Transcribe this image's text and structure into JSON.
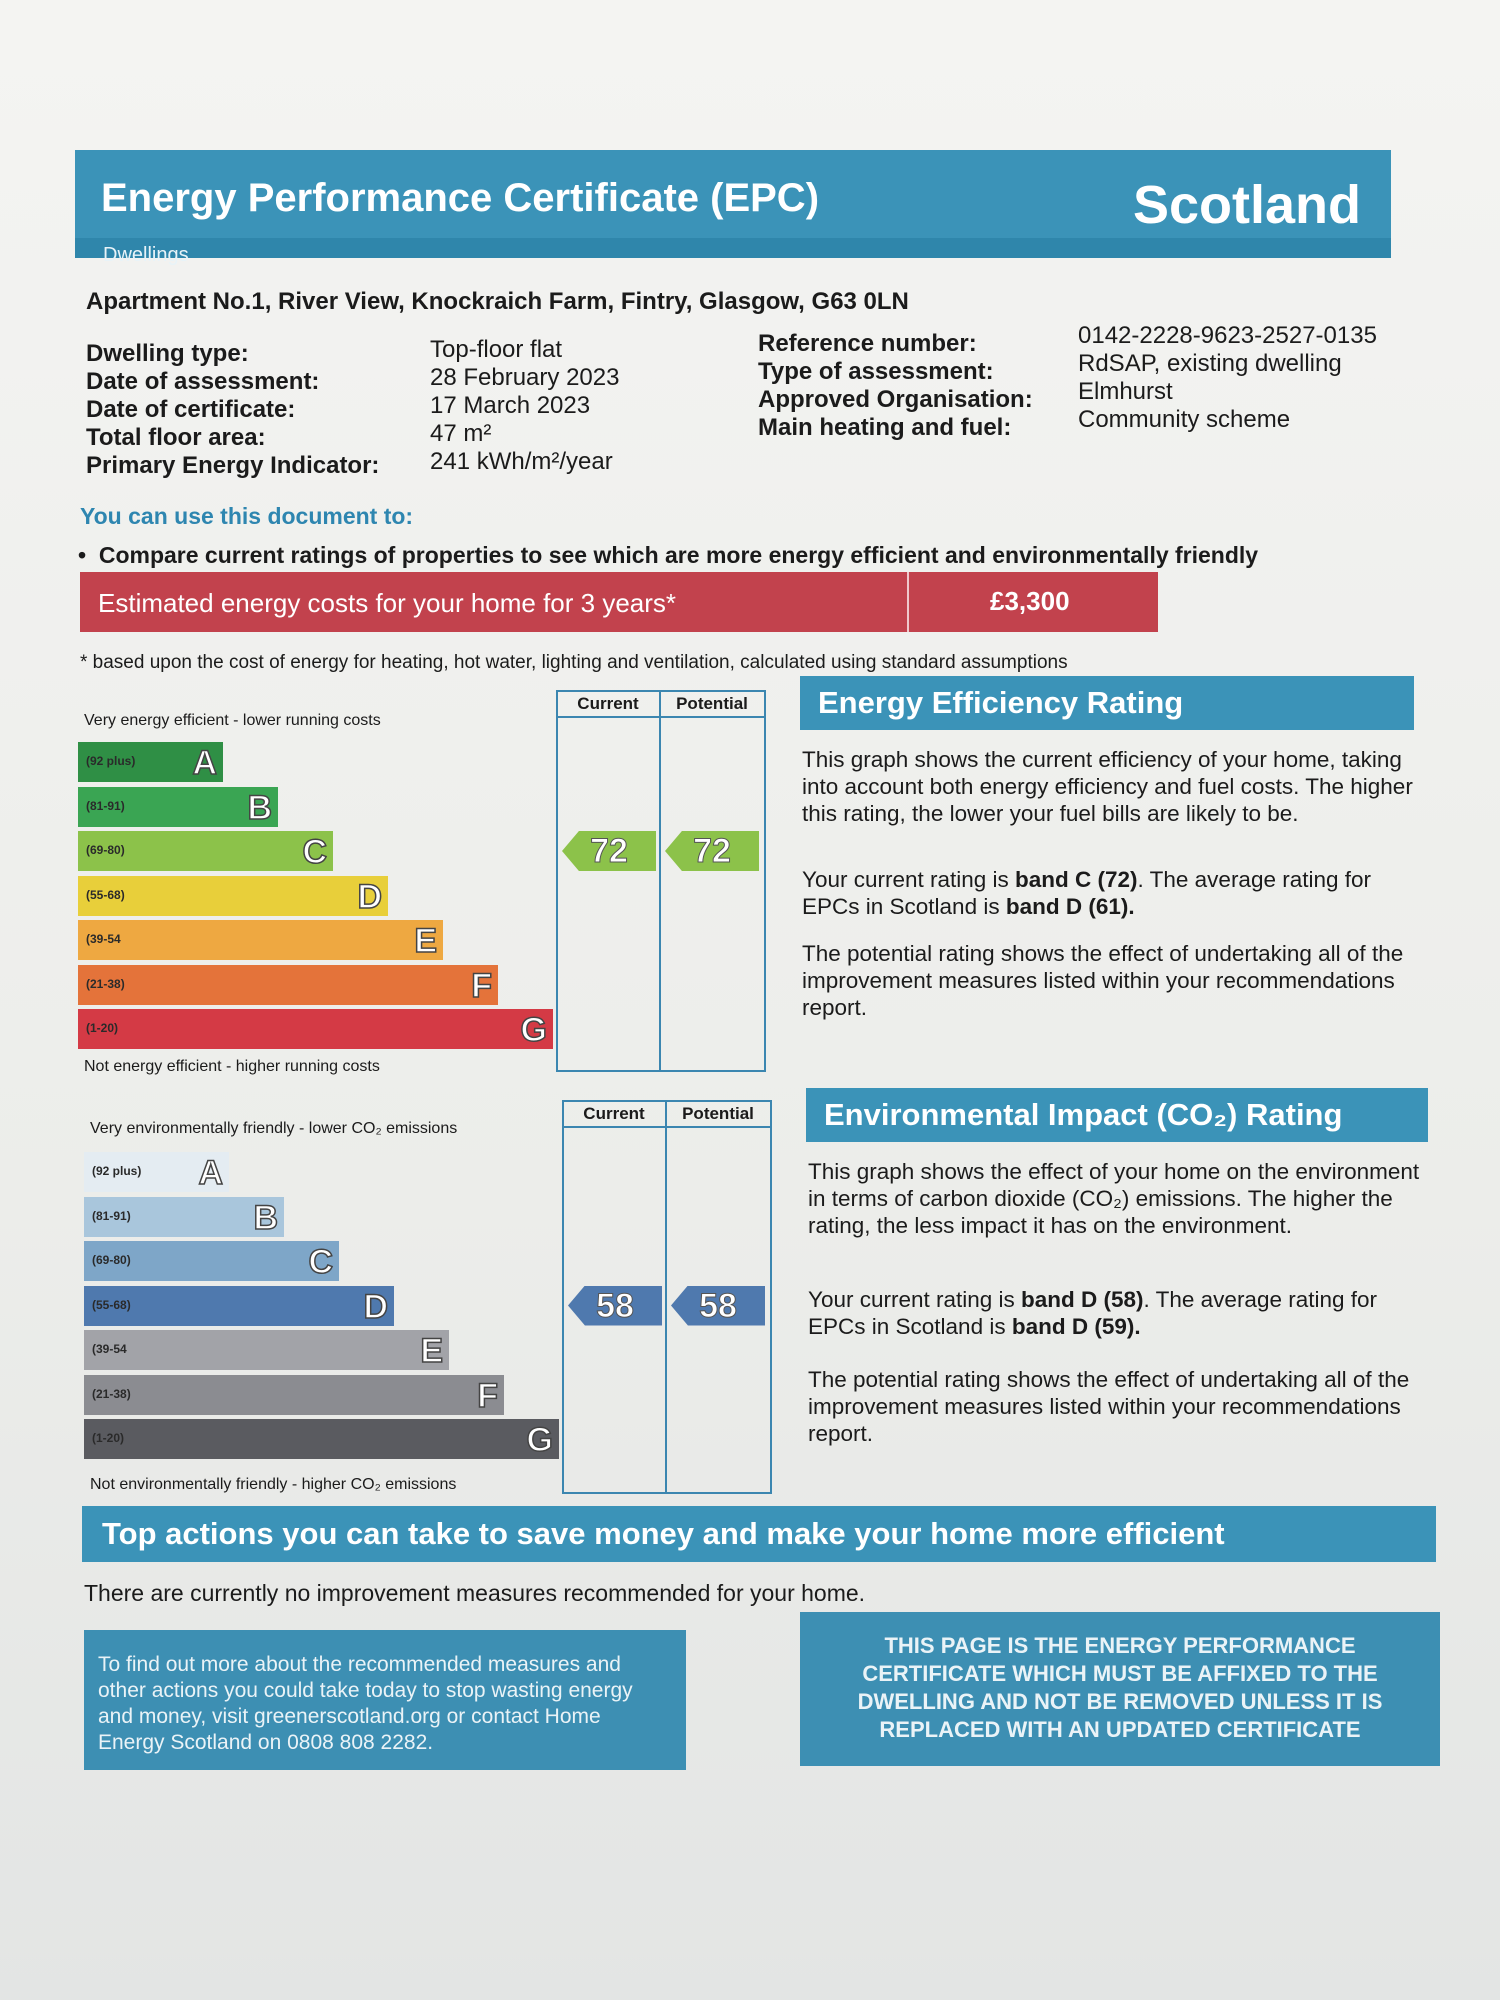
{
  "header": {
    "title": "Energy Performance Certificate (EPC)",
    "country": "Scotland",
    "subtitle": "Dwellings"
  },
  "address": "Apartment No.1, River View,  Knockraich Farm, Fintry, Glasgow, G63 0LN",
  "details_left": [
    {
      "label": "Dwelling type:",
      "value": "Top-floor flat"
    },
    {
      "label": "Date of assessment:",
      "value": "28 February 2023"
    },
    {
      "label": "Date of certificate:",
      "value": "17 March 2023"
    },
    {
      "label": "Total floor area:",
      "value": "47 m²"
    },
    {
      "label": "Primary Energy Indicator:",
      "value": "241 kWh/m²/year"
    }
  ],
  "details_right": [
    {
      "label": "Reference number:",
      "value": "0142-2228-9623-2527-0135"
    },
    {
      "label": "Type of assessment:",
      "value": "RdSAP, existing dwelling"
    },
    {
      "label": "Approved Organisation:",
      "value": "Elmhurst"
    },
    {
      "label": "Main heating and fuel:",
      "value": "Community scheme"
    }
  ],
  "use_title": "You can use this document to:",
  "use_bullet": "Compare current ratings of properties to see which are more energy efficient and environmentally friendly",
  "cost": {
    "label": "Estimated energy costs for your home for 3 years*",
    "value": "£3,300",
    "footnote": "* based upon the cost of energy for heating, hot water, lighting and ventilation, calculated using standard assumptions"
  },
  "energy_chart": {
    "top_label": "Very energy efficient - lower running costs",
    "bottom_label": "Not energy efficient - higher running costs",
    "current_header": "Current",
    "potential_header": "Potential",
    "bands": [
      {
        "range": "(92 plus)",
        "letter": "A",
        "color": "#2f8f45"
      },
      {
        "range": "(81-91)",
        "letter": "B",
        "color": "#3aa553"
      },
      {
        "range": "(69-80)",
        "letter": "C",
        "color": "#8cc24a"
      },
      {
        "range": "(55-68)",
        "letter": "D",
        "color": "#e8cf3a"
      },
      {
        "range": "(39-54",
        "letter": "E",
        "color": "#eea841"
      },
      {
        "range": "(21-38)",
        "letter": "F",
        "color": "#e4733a"
      },
      {
        "range": "(1-20)",
        "letter": "G",
        "color": "#d43a45"
      }
    ],
    "current": "72",
    "potential": "72",
    "band_index": 2,
    "arrow_color": "#8cc24a"
  },
  "energy_panel": {
    "title": "Energy Efficiency Rating",
    "p1": "This graph shows the current efficiency of your home, taking into account both energy efficiency and fuel costs. The higher this rating, the lower your fuel bills are likely to be.",
    "p2_a": "Your current rating is ",
    "p2_b": "band C (72)",
    "p2_c": ". The average rating for EPCs in Scotland is ",
    "p2_d": "band D (61).",
    "p3": "The potential rating shows the effect of undertaking all of the improvement measures listed within your recommendations report."
  },
  "env_chart": {
    "top_label": "Very environmentally friendly - lower CO₂ emissions",
    "bottom_label": "Not environmentally friendly - higher CO₂ emissions",
    "current_header": "Current",
    "potential_header": "Potential",
    "bands": [
      {
        "range": "(92 plus)",
        "letter": "A",
        "color": "#e4ecf2"
      },
      {
        "range": "(81-91)",
        "letter": "B",
        "color": "#a9c6dc"
      },
      {
        "range": "(69-80)",
        "letter": "C",
        "color": "#7ea6c8"
      },
      {
        "range": "(55-68)",
        "letter": "D",
        "color": "#4f79ae"
      },
      {
        "range": "(39-54",
        "letter": "E",
        "color": "#a2a3a8"
      },
      {
        "range": "(21-38)",
        "letter": "F",
        "color": "#8b8c91"
      },
      {
        "range": "(1-20)",
        "letter": "G",
        "color": "#5a5b60"
      }
    ],
    "current": "58",
    "potential": "58",
    "band_index": 3,
    "arrow_color": "#4f79ae"
  },
  "env_panel": {
    "title": "Environmental Impact (CO₂) Rating",
    "p1": "This graph shows the effect of your home on the environment in terms of carbon dioxide (CO₂) emissions. The higher the rating, the less impact it has on the environment.",
    "p2_a": "Your current rating is ",
    "p2_b": "band D (58)",
    "p2_c": ". The average rating for EPCs in Scotland is ",
    "p2_d": "band D (59).",
    "p3": "The potential rating shows the effect of undertaking all of the improvement measures listed within your recommendations report."
  },
  "actions": {
    "title": "Top actions you can take to save money and make your home more efficient",
    "text": "There are currently no improvement measures recommended for your home."
  },
  "info_left": "To find out more about the recommended measures and other actions you could take today to stop wasting energy and money, visit greenerscotland.org or contact Home Energy Scotland on 0808 808 2282.",
  "info_right": "THIS PAGE IS THE ENERGY PERFORMANCE CERTIFICATE WHICH MUST BE AFFIXED TO THE DWELLING AND NOT BE REMOVED UNLESS IT IS REPLACED WITH AN UPDATED CERTIFICATE"
}
